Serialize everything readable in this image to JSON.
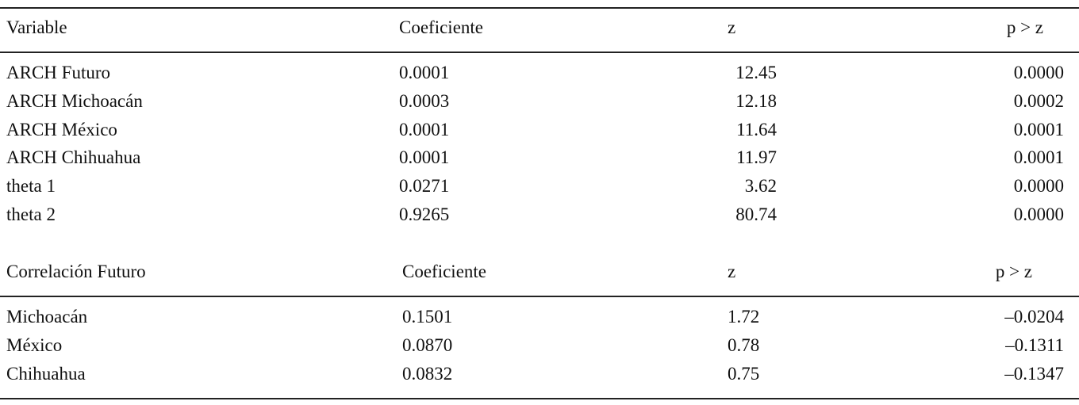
{
  "sections": [
    {
      "header": [
        "Variable",
        "Coeficiente",
        "z",
        "p > z"
      ],
      "rows": [
        [
          "ARCH Futuro",
          "0.0001",
          "12.45",
          "0.0000"
        ],
        [
          "ARCH Michoacán",
          "0.0003",
          "12.18",
          "0.0002"
        ],
        [
          "ARCH México",
          "0.0001",
          "11.64",
          "0.0001"
        ],
        [
          "ARCH Chihuahua",
          "0.0001",
          "11.97",
          "0.0001"
        ],
        [
          "theta 1",
          "0.0271",
          "3.62",
          "0.0000"
        ],
        [
          "theta 2",
          "0.9265",
          "80.74",
          "0.0000"
        ]
      ]
    },
    {
      "header": [
        "Correlación Futuro",
        "Coeficiente",
        "z",
        "p > z"
      ],
      "rows": [
        [
          "Michoacán",
          "0.1501",
          "1.72",
          "–0.0204"
        ],
        [
          "México",
          "0.0870",
          "0.78",
          "–0.1311"
        ],
        [
          "Chihuahua",
          "0.0832",
          "0.75",
          "–0.1347"
        ]
      ]
    }
  ]
}
